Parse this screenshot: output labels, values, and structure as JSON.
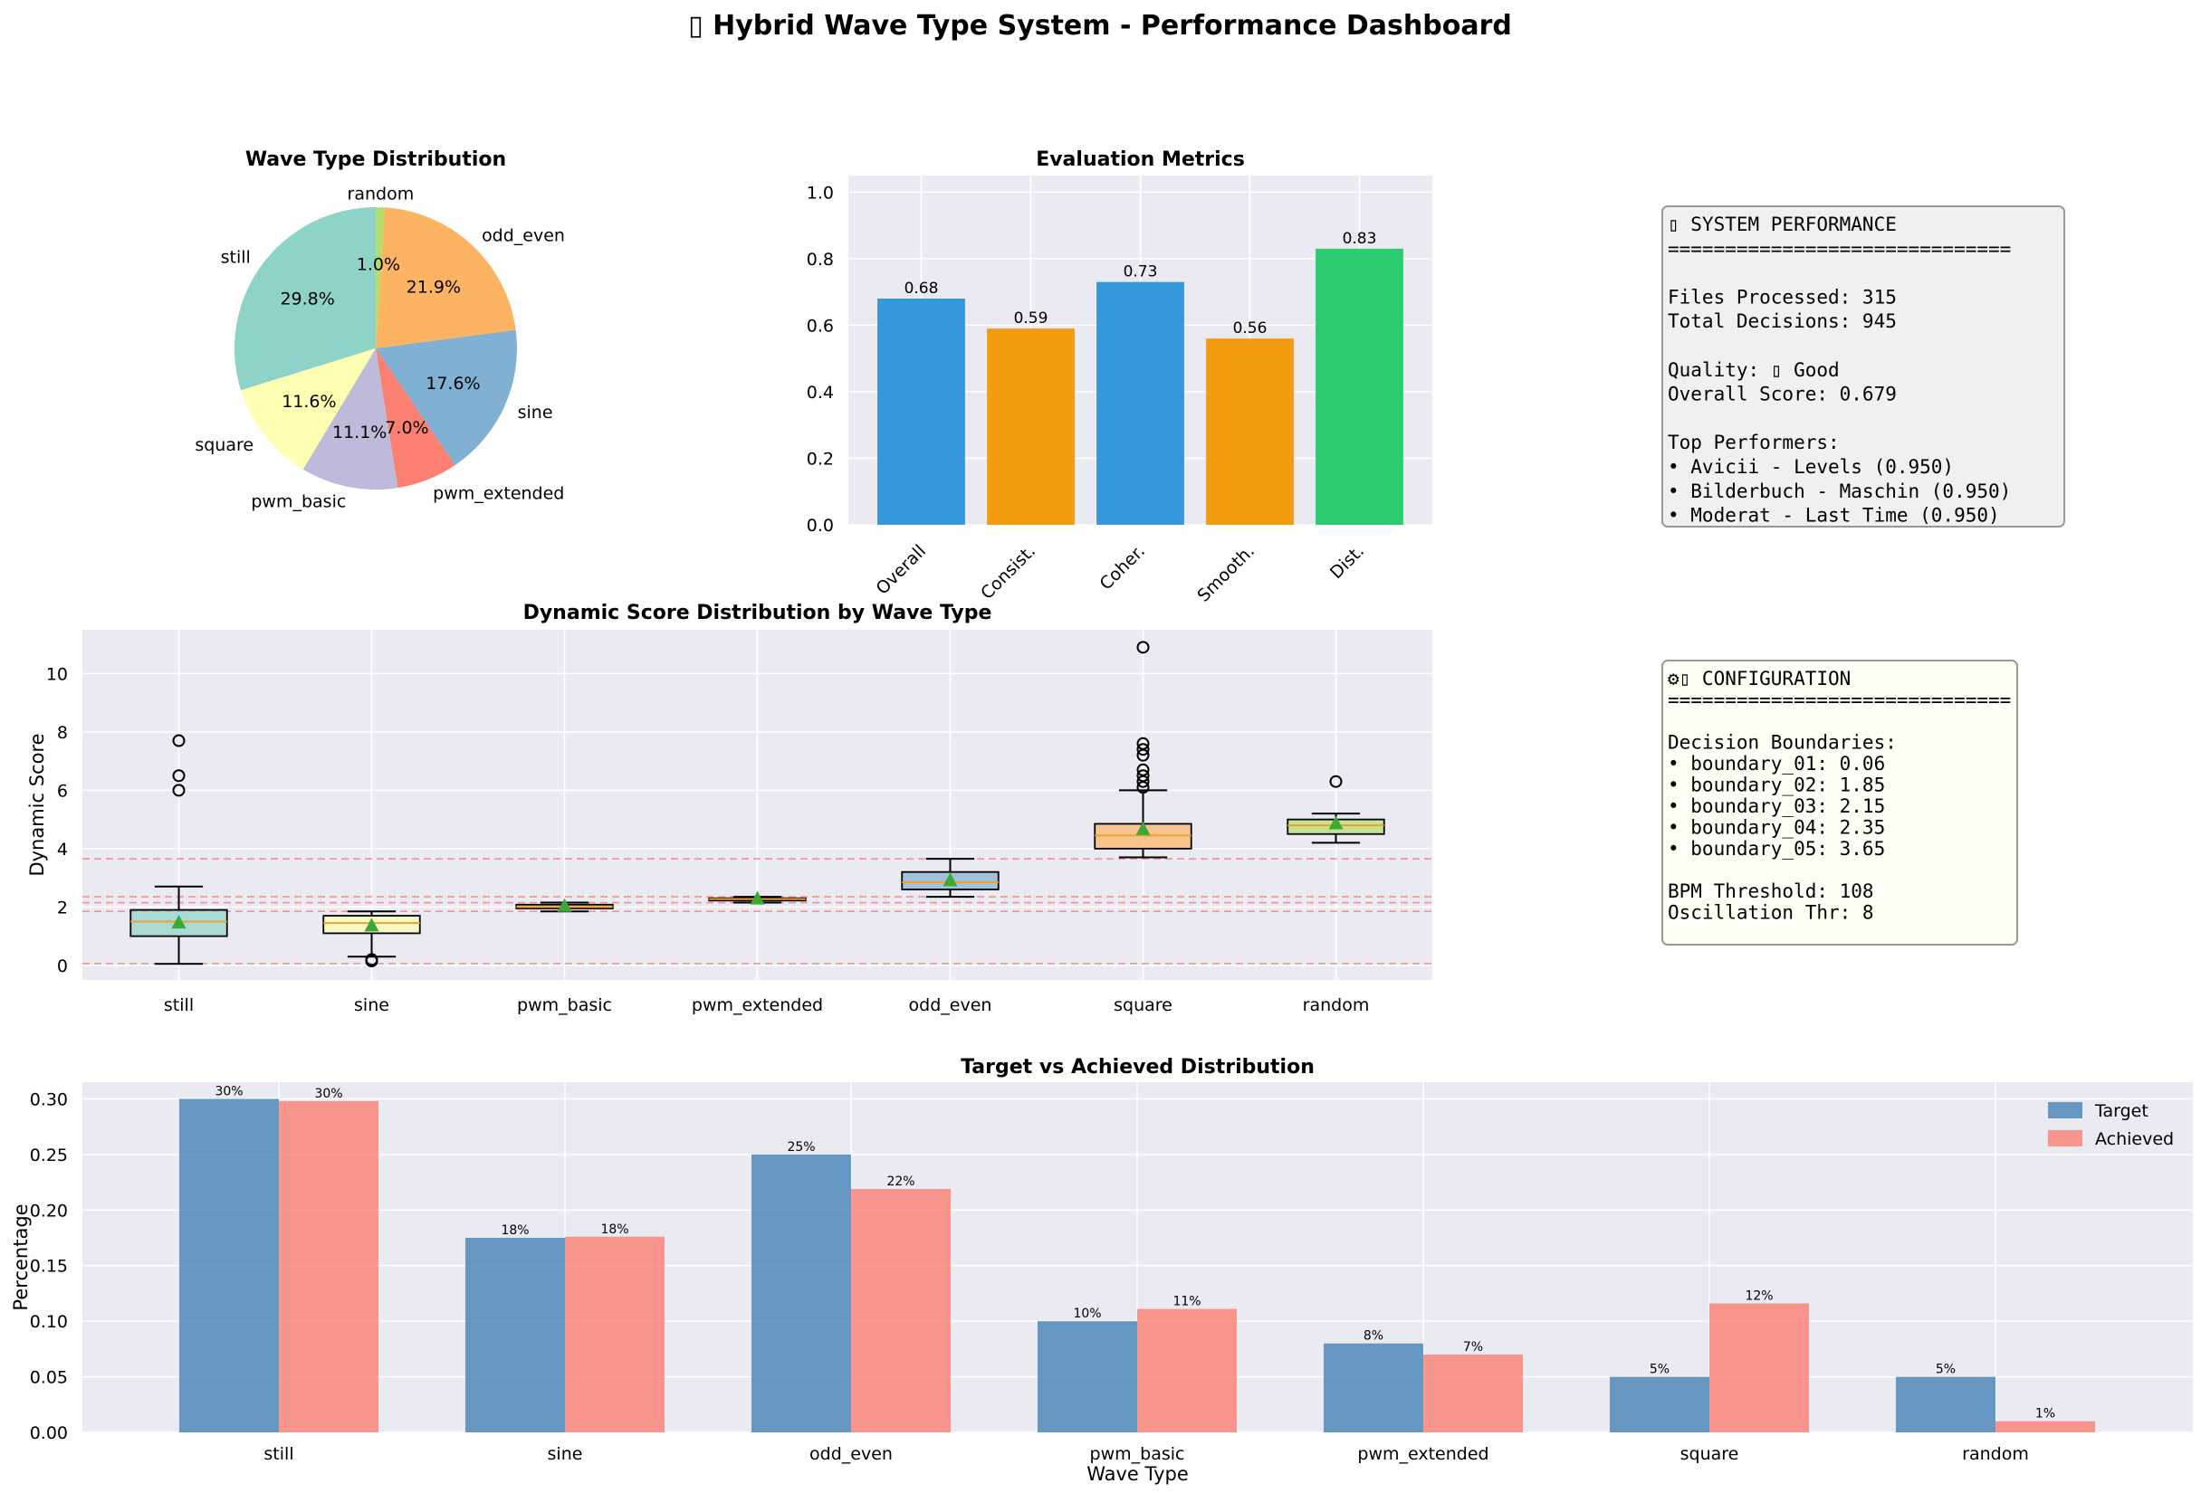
{
  "suptitle": "▯ Hybrid Wave Type System - Performance Dashboard",
  "colors": {
    "panel_bg": "#eaeaf2",
    "grid": "#ffffff",
    "target": "#4682b4",
    "achieved": "#fa8072",
    "mean_marker": "#3aa935",
    "boundary_line": "#f08080",
    "median_line": "#f0a030"
  },
  "chart_data": [
    {
      "type": "pie",
      "title": "Wave Type Distribution",
      "labels": [
        "still",
        "square",
        "pwm_basic",
        "pwm_extended",
        "sine",
        "odd_even",
        "random"
      ],
      "values": [
        29.8,
        11.6,
        11.1,
        7.0,
        17.6,
        21.9,
        1.0
      ],
      "percent_labels": [
        "29.8%",
        "11.6%",
        "11.1%",
        "7.0%",
        "17.6%",
        "21.9%",
        "1.0%"
      ],
      "colors": [
        "#8dd3c7",
        "#ffffb3",
        "#bebada",
        "#fb8072",
        "#80b1d3",
        "#fdb462",
        "#b3de69"
      ],
      "start_angle_deg": 90
    },
    {
      "type": "bar",
      "title": "Evaluation Metrics",
      "categories": [
        "Overall",
        "Consist.",
        "Coher.",
        "Smooth.",
        "Dist."
      ],
      "values": [
        0.68,
        0.59,
        0.73,
        0.56,
        0.83
      ],
      "value_labels": [
        "0.68",
        "0.59",
        "0.73",
        "0.56",
        "0.83"
      ],
      "colors": [
        "#3498db",
        "#f39c12",
        "#3498db",
        "#f39c12",
        "#2ecc71"
      ],
      "ylim": [
        0,
        1.05
      ],
      "yticks": [
        0.0,
        0.2,
        0.4,
        0.6,
        0.8,
        1.0
      ],
      "ytick_labels": [
        "0.0",
        "0.2",
        "0.4",
        "0.6",
        "0.8",
        "1.0"
      ],
      "grid": true
    },
    {
      "type": "box",
      "title": "Dynamic Score Distribution by Wave Type",
      "ylabel": "Dynamic Score",
      "categories": [
        "still",
        "sine",
        "pwm_basic",
        "pwm_extended",
        "odd_even",
        "square",
        "random"
      ],
      "box_colors": [
        "#8dd3c7",
        "#ffffb3",
        "#fdb462",
        "#fb8072",
        "#80b1d3",
        "#fdb462",
        "#b3de69"
      ],
      "stats": [
        {
          "min": 0.05,
          "q1": 1.0,
          "median": 1.5,
          "q3": 1.9,
          "max": 2.7,
          "mean": 1.45,
          "outliers": [
            6.0,
            6.5,
            7.7
          ]
        },
        {
          "min": 0.3,
          "q1": 1.1,
          "median": 1.45,
          "q3": 1.7,
          "max": 1.85,
          "mean": 1.35,
          "outliers": [
            0.15,
            0.2
          ]
        },
        {
          "min": 1.85,
          "q1": 1.95,
          "median": 2.0,
          "q3": 2.08,
          "max": 2.15,
          "mean": 2.02,
          "outliers": []
        },
        {
          "min": 2.15,
          "q1": 2.22,
          "median": 2.27,
          "q3": 2.3,
          "max": 2.35,
          "mean": 2.27,
          "outliers": []
        },
        {
          "min": 2.35,
          "q1": 2.6,
          "median": 2.85,
          "q3": 3.2,
          "max": 3.65,
          "mean": 2.9,
          "outliers": []
        },
        {
          "min": 3.7,
          "q1": 4.0,
          "median": 4.45,
          "q3": 4.85,
          "max": 6.0,
          "mean": 4.65,
          "outliers": [
            6.1,
            6.3,
            6.5,
            6.7,
            7.2,
            7.4,
            7.6,
            10.9
          ]
        },
        {
          "min": 4.2,
          "q1": 4.5,
          "median": 4.8,
          "q3": 5.0,
          "max": 5.2,
          "mean": 4.85,
          "outliers": [
            6.3
          ]
        }
      ],
      "boundaries": [
        0.06,
        1.85,
        2.15,
        2.35,
        3.65
      ],
      "ylim": [
        -0.5,
        11.5
      ],
      "yticks": [
        0,
        2,
        4,
        6,
        8,
        10
      ],
      "ytick_labels": [
        "0",
        "2",
        "4",
        "6",
        "8",
        "10"
      ],
      "grid": true
    },
    {
      "type": "bar",
      "title": "Target vs Achieved Distribution",
      "xlabel": "Wave Type",
      "ylabel": "Percentage",
      "categories": [
        "still",
        "sine",
        "odd_even",
        "pwm_basic",
        "pwm_extended",
        "square",
        "random"
      ],
      "series": [
        {
          "name": "Target",
          "values": [
            0.3,
            0.175,
            0.25,
            0.1,
            0.08,
            0.05,
            0.05
          ],
          "labels": [
            "30%",
            "18%",
            "25%",
            "10%",
            "8%",
            "5%",
            "5%"
          ]
        },
        {
          "name": "Achieved",
          "values": [
            0.298,
            0.176,
            0.219,
            0.111,
            0.07,
            0.116,
            0.01
          ],
          "labels": [
            "30%",
            "18%",
            "22%",
            "11%",
            "7%",
            "12%",
            "1%"
          ]
        }
      ],
      "ylim": [
        0,
        0.315
      ],
      "yticks": [
        0.0,
        0.05,
        0.1,
        0.15,
        0.2,
        0.25,
        0.3
      ],
      "ytick_labels": [
        "0.00",
        "0.05",
        "0.10",
        "0.15",
        "0.20",
        "0.25",
        "0.30"
      ],
      "legend_position": "upper right",
      "grid": true
    }
  ],
  "performance_box": {
    "lines": [
      "▯ SYSTEM PERFORMANCE",
      "==============================",
      "",
      "Files Processed: 315",
      "Total Decisions: 945",
      "",
      "Quality: ▯ Good",
      "Overall Score: 0.679",
      "",
      "Top Performers:",
      "• Avicii - Levels (0.950)",
      "• Bilderbuch - Maschin (0.950)",
      "• Moderat - Last Time (0.950)"
    ]
  },
  "config_box": {
    "lines": [
      "⚙▯ CONFIGURATION",
      "==============================",
      "",
      "Decision Boundaries:",
      "• boundary_01: 0.06",
      "• boundary_02: 1.85",
      "• boundary_03: 2.15",
      "• boundary_04: 2.35",
      "• boundary_05: 3.65",
      "",
      "BPM Threshold: 108",
      "Oscillation Thr: 8"
    ]
  }
}
